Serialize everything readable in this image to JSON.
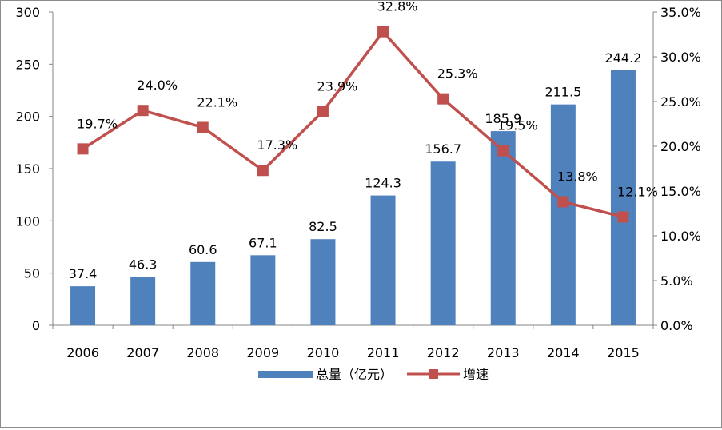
{
  "chart_data": {
    "type": "bar",
    "categories": [
      "2006",
      "2007",
      "2008",
      "2009",
      "2010",
      "2011",
      "2012",
      "2013",
      "2014",
      "2015"
    ],
    "series": [
      {
        "name": "总量（亿元）",
        "type": "bar",
        "axis": "left",
        "color": "#4F81BD",
        "values": [
          37.4,
          46.3,
          60.6,
          67.1,
          82.5,
          124.3,
          156.7,
          185.9,
          211.5,
          244.2
        ],
        "labels": [
          "37.4",
          "46.3",
          "60.6",
          "67.1",
          "82.5",
          "124.3",
          "156.7",
          "185.9",
          "211.5",
          "244.2"
        ]
      },
      {
        "name": "增速",
        "type": "line",
        "axis": "right",
        "color": "#C0504D",
        "marker": "square",
        "values": [
          19.7,
          24.0,
          22.1,
          17.3,
          23.9,
          32.8,
          25.3,
          19.5,
          13.8,
          12.1
        ],
        "labels": [
          "19.7%",
          "24.0%",
          "22.1%",
          "17.3%",
          "23.9%",
          "32.8%",
          "25.3%",
          "19.5%",
          "13.8%",
          "12.1%"
        ]
      }
    ],
    "y_left": {
      "min": 0,
      "max": 300,
      "ticks": [
        "0",
        "50",
        "100",
        "150",
        "200",
        "250",
        "300"
      ]
    },
    "y_right": {
      "min": 0,
      "max": 35,
      "ticks": [
        "0.0%",
        "5.0%",
        "10.0%",
        "15.0%",
        "20.0%",
        "25.0%",
        "30.0%",
        "35.0%"
      ]
    },
    "title": "",
    "xlabel": "",
    "ylabel": "",
    "grid": false,
    "legend_position": "bottom"
  }
}
